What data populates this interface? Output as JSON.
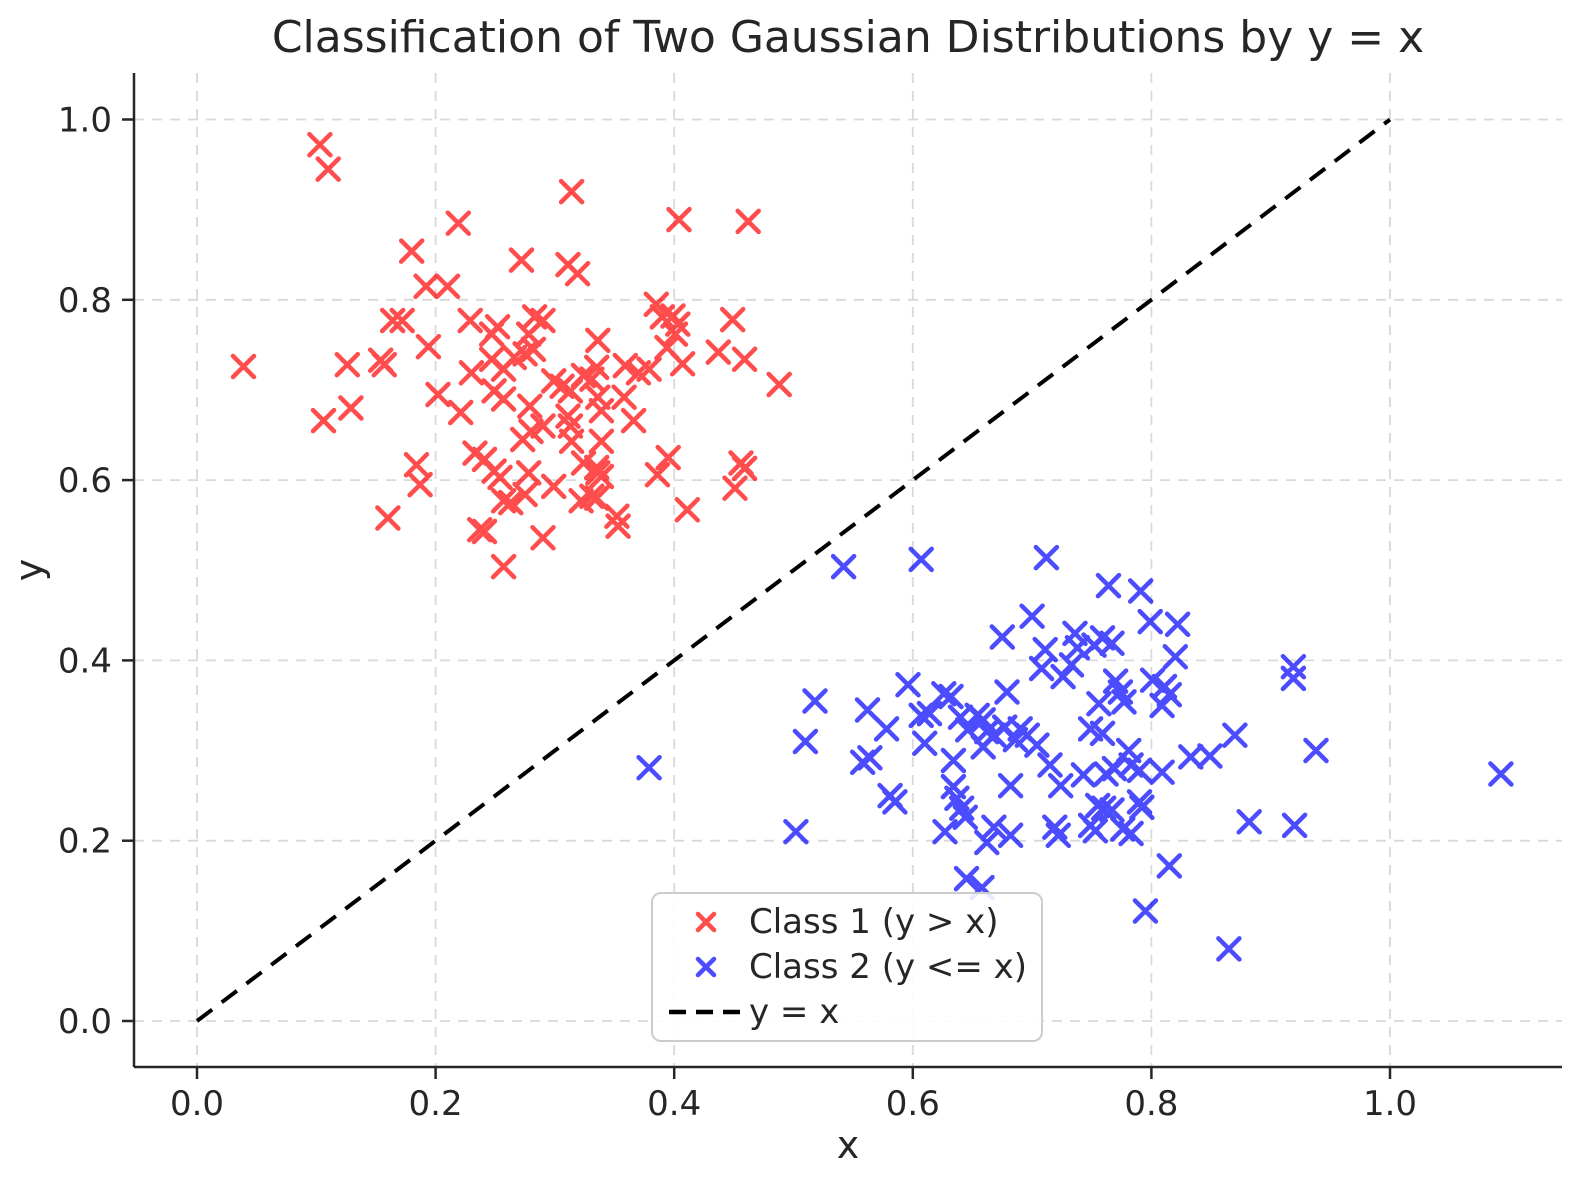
{
  "title": "Classification of Two Gaussian Distributions by y = x",
  "axes": {
    "xlabel": "x",
    "ylabel": "y"
  },
  "x_tick_labels": [
    "0.0",
    "0.2",
    "0.4",
    "0.6",
    "0.8",
    "1.0"
  ],
  "y_tick_labels": [
    "0.0",
    "0.2",
    "0.4",
    "0.6",
    "0.8",
    "1.0"
  ],
  "legend": {
    "items": [
      {
        "label": "Class 1 (y > x)",
        "marker": "x",
        "color": "#ff0000"
      },
      {
        "label": "Class 2 (y <= x)",
        "marker": "x",
        "color": "#0000ff"
      },
      {
        "label": "y = x",
        "marker": "dashed-line",
        "color": "#000000"
      }
    ]
  },
  "colors": {
    "class1": "#ff0000",
    "class2": "#0000ff",
    "marker_opacity": 0.7,
    "boundary_line": "#000000",
    "grid": "#d9d9d9",
    "spine": "#262626",
    "text": "#262626"
  },
  "chart_data": {
    "type": "scatter",
    "title": "Classification of Two Gaussian Distributions by y = x",
    "xlabel": "x",
    "ylabel": "y",
    "xlim": [
      -0.054,
      1.145
    ],
    "ylim": [
      -0.051,
      1.052
    ],
    "x_tick_values": [
      0.0,
      0.2,
      0.4,
      0.6,
      0.8,
      1.0
    ],
    "y_tick_values": [
      0.0,
      0.2,
      0.4,
      0.6,
      0.8,
      1.0
    ],
    "grid": true,
    "grid_style": "dashed",
    "legend_position": "lower center",
    "series": [
      {
        "name": "Class 1 (y > x)",
        "type": "scatter",
        "marker": "x",
        "color": "#ff0000",
        "opacity": 0.7,
        "points": [
          [
            0.103,
            0.972
          ],
          [
            0.11,
            0.945
          ],
          [
            0.314,
            0.92
          ],
          [
            0.404,
            0.889
          ],
          [
            0.462,
            0.887
          ],
          [
            0.219,
            0.885
          ],
          [
            0.18,
            0.854
          ],
          [
            0.272,
            0.844
          ],
          [
            0.311,
            0.839
          ],
          [
            0.319,
            0.829
          ],
          [
            0.192,
            0.815
          ],
          [
            0.21,
            0.815
          ],
          [
            0.385,
            0.795
          ],
          [
            0.399,
            0.782
          ],
          [
            0.39,
            0.781
          ],
          [
            0.283,
            0.781
          ],
          [
            0.164,
            0.777
          ],
          [
            0.172,
            0.777
          ],
          [
            0.229,
            0.777
          ],
          [
            0.29,
            0.777
          ],
          [
            0.449,
            0.778
          ],
          [
            0.403,
            0.773
          ],
          [
            0.252,
            0.77
          ],
          [
            0.247,
            0.762
          ],
          [
            0.278,
            0.762
          ],
          [
            0.401,
            0.762
          ],
          [
            0.336,
            0.755
          ],
          [
            0.194,
            0.748
          ],
          [
            0.282,
            0.745
          ],
          [
            0.394,
            0.747
          ],
          [
            0.437,
            0.742
          ],
          [
            0.275,
            0.74
          ],
          [
            0.266,
            0.736
          ],
          [
            0.247,
            0.734
          ],
          [
            0.335,
            0.725
          ],
          [
            0.459,
            0.734
          ],
          [
            0.154,
            0.733
          ],
          [
            0.126,
            0.728
          ],
          [
            0.157,
            0.728
          ],
          [
            0.359,
            0.727
          ],
          [
            0.039,
            0.726
          ],
          [
            0.257,
            0.723
          ],
          [
            0.379,
            0.723
          ],
          [
            0.23,
            0.719
          ],
          [
            0.324,
            0.716
          ],
          [
            0.37,
            0.719
          ],
          [
            0.331,
            0.712
          ],
          [
            0.299,
            0.71
          ],
          [
            0.407,
            0.729
          ],
          [
            0.306,
            0.704
          ],
          [
            0.313,
            0.699
          ],
          [
            0.249,
            0.699
          ],
          [
            0.202,
            0.695
          ],
          [
            0.336,
            0.692
          ],
          [
            0.358,
            0.692
          ],
          [
            0.257,
            0.69
          ],
          [
            0.279,
            0.682
          ],
          [
            0.129,
            0.68
          ],
          [
            0.339,
            0.677
          ],
          [
            0.221,
            0.675
          ],
          [
            0.311,
            0.671
          ],
          [
            0.106,
            0.666
          ],
          [
            0.366,
            0.666
          ],
          [
            0.29,
            0.66
          ],
          [
            0.313,
            0.66
          ],
          [
            0.28,
            0.654
          ],
          [
            0.273,
            0.645
          ],
          [
            0.314,
            0.643
          ],
          [
            0.339,
            0.643
          ],
          [
            0.233,
            0.63
          ],
          [
            0.241,
            0.623
          ],
          [
            0.324,
            0.619
          ],
          [
            0.184,
            0.617
          ],
          [
            0.335,
            0.614
          ],
          [
            0.456,
            0.619
          ],
          [
            0.459,
            0.613
          ],
          [
            0.249,
            0.61
          ],
          [
            0.278,
            0.608
          ],
          [
            0.336,
            0.608
          ],
          [
            0.386,
            0.606
          ],
          [
            0.339,
            0.604
          ],
          [
            0.254,
            0.603
          ],
          [
            0.395,
            0.625
          ],
          [
            0.187,
            0.595
          ],
          [
            0.299,
            0.593
          ],
          [
            0.451,
            0.591
          ],
          [
            0.275,
            0.584
          ],
          [
            0.331,
            0.582
          ],
          [
            0.335,
            0.58
          ],
          [
            0.257,
            0.577
          ],
          [
            0.263,
            0.575
          ],
          [
            0.322,
            0.577
          ],
          [
            0.411,
            0.567
          ],
          [
            0.352,
            0.56
          ],
          [
            0.16,
            0.558
          ],
          [
            0.353,
            0.549
          ],
          [
            0.237,
            0.545
          ],
          [
            0.241,
            0.543
          ],
          [
            0.29,
            0.536
          ],
          [
            0.488,
            0.706
          ],
          [
            0.257,
            0.504
          ]
        ]
      },
      {
        "name": "Class 2 (y <= x)",
        "type": "scatter",
        "marker": "x",
        "color": "#0000ff",
        "opacity": 0.7,
        "points": [
          [
            0.542,
            0.504
          ],
          [
            0.607,
            0.512
          ],
          [
            0.712,
            0.514
          ],
          [
            0.764,
            0.483
          ],
          [
            0.791,
            0.477
          ],
          [
            0.7,
            0.449
          ],
          [
            0.799,
            0.443
          ],
          [
            0.822,
            0.44
          ],
          [
            0.736,
            0.43
          ],
          [
            0.675,
            0.426
          ],
          [
            0.759,
            0.425
          ],
          [
            0.767,
            0.419
          ],
          [
            0.752,
            0.417
          ],
          [
            0.738,
            0.414
          ],
          [
            0.711,
            0.412
          ],
          [
            0.82,
            0.404
          ],
          [
            0.919,
            0.393
          ],
          [
            0.733,
            0.395
          ],
          [
            0.708,
            0.391
          ],
          [
            0.726,
            0.382
          ],
          [
            0.919,
            0.38
          ],
          [
            0.801,
            0.378
          ],
          [
            0.77,
            0.377
          ],
          [
            0.596,
            0.373
          ],
          [
            0.811,
            0.371
          ],
          [
            0.679,
            0.365
          ],
          [
            0.774,
            0.365
          ],
          [
            0.626,
            0.363
          ],
          [
            0.632,
            0.36
          ],
          [
            0.815,
            0.362
          ],
          [
            0.518,
            0.355
          ],
          [
            0.777,
            0.354
          ],
          [
            0.756,
            0.352
          ],
          [
            0.809,
            0.35
          ],
          [
            0.562,
            0.345
          ],
          [
            0.614,
            0.341
          ],
          [
            0.607,
            0.339
          ],
          [
            0.654,
            0.339
          ],
          [
            0.64,
            0.337
          ],
          [
            0.659,
            0.334
          ],
          [
            0.677,
            0.326
          ],
          [
            0.578,
            0.324
          ],
          [
            0.69,
            0.324
          ],
          [
            0.749,
            0.324
          ],
          [
            0.646,
            0.323
          ],
          [
            0.662,
            0.321
          ],
          [
            0.759,
            0.319
          ],
          [
            0.696,
            0.317
          ],
          [
            0.668,
            0.317
          ],
          [
            0.87,
            0.317
          ],
          [
            0.686,
            0.312
          ],
          [
            0.51,
            0.31
          ],
          [
            0.61,
            0.308
          ],
          [
            0.704,
            0.306
          ],
          [
            0.659,
            0.304
          ],
          [
            0.938,
            0.3
          ],
          [
            0.781,
            0.3
          ],
          [
            0.849,
            0.294
          ],
          [
            0.833,
            0.293
          ],
          [
            0.564,
            0.292
          ],
          [
            0.634,
            0.289
          ],
          [
            0.558,
            0.287
          ],
          [
            0.783,
            0.284
          ],
          [
            0.715,
            0.284
          ],
          [
            0.379,
            0.281
          ],
          [
            0.769,
            0.28
          ],
          [
            0.79,
            0.278
          ],
          [
            1.093,
            0.274
          ],
          [
            0.762,
            0.274
          ],
          [
            0.743,
            0.273
          ],
          [
            0.809,
            0.276
          ],
          [
            0.682,
            0.261
          ],
          [
            0.724,
            0.261
          ],
          [
            0.634,
            0.26
          ],
          [
            0.581,
            0.25
          ],
          [
            0.637,
            0.247
          ],
          [
            0.585,
            0.243
          ],
          [
            0.79,
            0.243
          ],
          [
            0.755,
            0.239
          ],
          [
            0.792,
            0.237
          ],
          [
            0.76,
            0.236
          ],
          [
            0.641,
            0.236
          ],
          [
            0.767,
            0.234
          ],
          [
            0.644,
            0.226
          ],
          [
            0.882,
            0.221
          ],
          [
            0.749,
            0.217
          ],
          [
            0.92,
            0.217
          ],
          [
            0.668,
            0.215
          ],
          [
            0.719,
            0.215
          ],
          [
            0.776,
            0.213
          ],
          [
            0.753,
            0.211
          ],
          [
            0.627,
            0.21
          ],
          [
            0.502,
            0.21
          ],
          [
            0.783,
            0.208
          ],
          [
            0.682,
            0.206
          ],
          [
            0.722,
            0.206
          ],
          [
            0.662,
            0.198
          ],
          [
            0.815,
            0.172
          ],
          [
            0.645,
            0.158
          ],
          [
            0.658,
            0.148
          ],
          [
            0.795,
            0.122
          ],
          [
            0.865,
            0.08
          ]
        ]
      },
      {
        "name": "y = x",
        "type": "line",
        "style": "dashed",
        "color": "#000000",
        "points": [
          [
            0.0,
            0.0
          ],
          [
            1.0,
            1.0
          ]
        ]
      }
    ]
  }
}
